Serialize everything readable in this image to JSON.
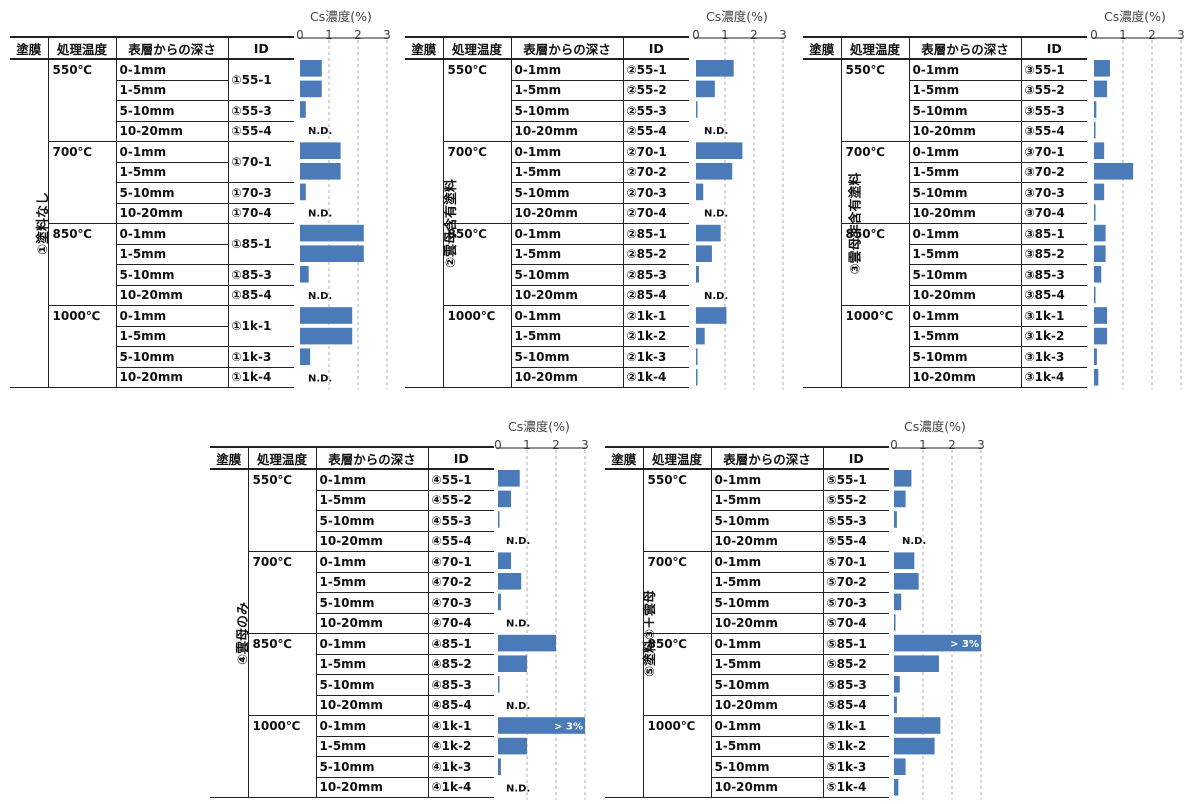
{
  "header": {
    "coat": "塗膜",
    "temp": "処理温度",
    "depth": "表層からの深さ",
    "id": "ID"
  },
  "axis": {
    "title": "Cs濃度(%)",
    "ticks": [
      "0",
      "1",
      "2",
      "3"
    ]
  },
  "nd_label": "N.D.",
  "over_label": "> 3%",
  "colors": {
    "bar": "#4a7ab8",
    "grid": "#999999",
    "rule": "#222222"
  },
  "temperatures": [
    "550℃",
    "700℃",
    "850℃",
    "1000℃"
  ],
  "depths": [
    "0-1mm",
    "1-5mm",
    "5-10mm",
    "10-20mm"
  ],
  "chart_data": [
    {
      "type": "bar",
      "coating": "①塗料なし",
      "title": "Cs濃度(%)",
      "xlim": [
        0,
        3
      ],
      "groups": [
        {
          "temp": "550℃",
          "rows": [
            {
              "depth": "0-1mm",
              "id": "①55-1",
              "value": 0.75,
              "merged": true
            },
            {
              "depth": "1-5mm",
              "id": "",
              "value": 0.75
            },
            {
              "depth": "5-10mm",
              "id": "①55-3",
              "value": 0.2
            },
            {
              "depth": "10-20mm",
              "id": "①55-4",
              "value": null,
              "label": "N.D."
            }
          ]
        },
        {
          "temp": "700℃",
          "rows": [
            {
              "depth": "0-1mm",
              "id": "①70-1",
              "value": 1.4,
              "merged": true
            },
            {
              "depth": "1-5mm",
              "id": "",
              "value": 1.4
            },
            {
              "depth": "5-10mm",
              "id": "①70-3",
              "value": 0.2
            },
            {
              "depth": "10-20mm",
              "id": "①70-4",
              "value": null,
              "label": "N.D."
            }
          ]
        },
        {
          "temp": "850℃",
          "rows": [
            {
              "depth": "0-1mm",
              "id": "①85-1",
              "value": 2.2,
              "merged": true
            },
            {
              "depth": "1-5mm",
              "id": "",
              "value": 2.2
            },
            {
              "depth": "5-10mm",
              "id": "①85-3",
              "value": 0.3
            },
            {
              "depth": "10-20mm",
              "id": "①85-4",
              "value": null,
              "label": "N.D."
            }
          ]
        },
        {
          "temp": "1000℃",
          "rows": [
            {
              "depth": "0-1mm",
              "id": "①1k-1",
              "value": 1.8,
              "merged": true
            },
            {
              "depth": "1-5mm",
              "id": "",
              "value": 1.8
            },
            {
              "depth": "5-10mm",
              "id": "①1k-3",
              "value": 0.35
            },
            {
              "depth": "10-20mm",
              "id": "①1k-4",
              "value": null,
              "label": "N.D."
            }
          ]
        }
      ]
    },
    {
      "type": "bar",
      "coating": "②雲母含有塗料",
      "title": "Cs濃度(%)",
      "xlim": [
        0,
        3
      ],
      "groups": [
        {
          "temp": "550℃",
          "rows": [
            {
              "depth": "0-1mm",
              "id": "②55-1",
              "value": 1.3
            },
            {
              "depth": "1-5mm",
              "id": "②55-2",
              "value": 0.65
            },
            {
              "depth": "5-10mm",
              "id": "②55-3",
              "value": 0.05
            },
            {
              "depth": "10-20mm",
              "id": "②55-4",
              "value": null,
              "label": "N.D."
            }
          ]
        },
        {
          "temp": "700℃",
          "rows": [
            {
              "depth": "0-1mm",
              "id": "②70-1",
              "value": 1.6
            },
            {
              "depth": "1-5mm",
              "id": "②70-2",
              "value": 1.25
            },
            {
              "depth": "5-10mm",
              "id": "②70-3",
              "value": 0.25
            },
            {
              "depth": "10-20mm",
              "id": "②70-4",
              "value": null,
              "label": "N.D."
            }
          ]
        },
        {
          "temp": "850℃",
          "rows": [
            {
              "depth": "0-1mm",
              "id": "②85-1",
              "value": 0.85
            },
            {
              "depth": "1-5mm",
              "id": "②85-2",
              "value": 0.55
            },
            {
              "depth": "5-10mm",
              "id": "②85-3",
              "value": 0.1
            },
            {
              "depth": "10-20mm",
              "id": "②85-4",
              "value": null,
              "label": "N.D."
            }
          ]
        },
        {
          "temp": "1000℃",
          "rows": [
            {
              "depth": "0-1mm",
              "id": "②1k-1",
              "value": 1.05
            },
            {
              "depth": "1-5mm",
              "id": "②1k-2",
              "value": 0.3
            },
            {
              "depth": "5-10mm",
              "id": "②1k-3",
              "value": 0.05
            },
            {
              "depth": "10-20mm",
              "id": "②1k-4",
              "value": 0.05
            }
          ]
        }
      ]
    },
    {
      "type": "bar",
      "coating": "③雲母非含有塗料",
      "title": "Cs濃度(%)",
      "xlim": [
        0,
        3
      ],
      "groups": [
        {
          "temp": "550℃",
          "rows": [
            {
              "depth": "0-1mm",
              "id": "③55-1",
              "value": 0.55
            },
            {
              "depth": "1-5mm",
              "id": "③55-2",
              "value": 0.45
            },
            {
              "depth": "5-10mm",
              "id": "③55-3",
              "value": 0.08
            },
            {
              "depth": "10-20mm",
              "id": "③55-4",
              "value": 0.05
            }
          ]
        },
        {
          "temp": "700℃",
          "rows": [
            {
              "depth": "0-1mm",
              "id": "③70-1",
              "value": 0.35
            },
            {
              "depth": "1-5mm",
              "id": "③70-2",
              "value": 1.35
            },
            {
              "depth": "5-10mm",
              "id": "③70-3",
              "value": 0.35
            },
            {
              "depth": "10-20mm",
              "id": "③70-4",
              "value": 0.05
            }
          ]
        },
        {
          "temp": "850℃",
          "rows": [
            {
              "depth": "0-1mm",
              "id": "③85-1",
              "value": 0.4
            },
            {
              "depth": "1-5mm",
              "id": "③85-2",
              "value": 0.4
            },
            {
              "depth": "5-10mm",
              "id": "③85-3",
              "value": 0.25
            },
            {
              "depth": "10-20mm",
              "id": "③85-4",
              "value": 0.05
            }
          ]
        },
        {
          "temp": "1000℃",
          "rows": [
            {
              "depth": "0-1mm",
              "id": "③1k-1",
              "value": 0.45
            },
            {
              "depth": "1-5mm",
              "id": "③1k-2",
              "value": 0.45
            },
            {
              "depth": "5-10mm",
              "id": "③1k-3",
              "value": 0.1
            },
            {
              "depth": "10-20mm",
              "id": "③1k-4",
              "value": 0.15
            }
          ]
        }
      ]
    },
    {
      "type": "bar",
      "coating": "④雲母のみ",
      "title": "Cs濃度(%)",
      "xlim": [
        0,
        3
      ],
      "groups": [
        {
          "temp": "550℃",
          "rows": [
            {
              "depth": "0-1mm",
              "id": "④55-1",
              "value": 0.75
            },
            {
              "depth": "1-5mm",
              "id": "④55-2",
              "value": 0.45
            },
            {
              "depth": "5-10mm",
              "id": "④55-3",
              "value": 0.05
            },
            {
              "depth": "10-20mm",
              "id": "④55-4",
              "value": null,
              "label": "N.D."
            }
          ]
        },
        {
          "temp": "700℃",
          "rows": [
            {
              "depth": "0-1mm",
              "id": "④70-1",
              "value": 0.45
            },
            {
              "depth": "1-5mm",
              "id": "④70-2",
              "value": 0.8
            },
            {
              "depth": "5-10mm",
              "id": "④70-3",
              "value": 0.1
            },
            {
              "depth": "10-20mm",
              "id": "④70-4",
              "value": null,
              "label": "N.D."
            }
          ]
        },
        {
          "temp": "850℃",
          "rows": [
            {
              "depth": "0-1mm",
              "id": "④85-1",
              "value": 2.0
            },
            {
              "depth": "1-5mm",
              "id": "④85-2",
              "value": 1.0
            },
            {
              "depth": "5-10mm",
              "id": "④85-3",
              "value": 0.05
            },
            {
              "depth": "10-20mm",
              "id": "④85-4",
              "value": null,
              "label": "N.D."
            }
          ]
        },
        {
          "temp": "1000℃",
          "rows": [
            {
              "depth": "0-1mm",
              "id": "④1k-1",
              "value": 3.0,
              "label": "> 3%"
            },
            {
              "depth": "1-5mm",
              "id": "④1k-2",
              "value": 1.0
            },
            {
              "depth": "5-10mm",
              "id": "④1k-3",
              "value": 0.1
            },
            {
              "depth": "10-20mm",
              "id": "④1k-4",
              "value": null,
              "label": "N.D."
            }
          ]
        }
      ]
    },
    {
      "type": "bar",
      "coating": "⑤塗料③＋雲母",
      "title": "Cs濃度(%)",
      "xlim": [
        0,
        3
      ],
      "groups": [
        {
          "temp": "550℃",
          "rows": [
            {
              "depth": "0-1mm",
              "id": "⑤55-1",
              "value": 0.6
            },
            {
              "depth": "1-5mm",
              "id": "⑤55-2",
              "value": 0.4
            },
            {
              "depth": "5-10mm",
              "id": "⑤55-3",
              "value": 0.1
            },
            {
              "depth": "10-20mm",
              "id": "⑤55-4",
              "value": null,
              "label": "N.D."
            }
          ]
        },
        {
          "temp": "700℃",
          "rows": [
            {
              "depth": "0-1mm",
              "id": "⑤70-1",
              "value": 0.7
            },
            {
              "depth": "1-5mm",
              "id": "⑤70-2",
              "value": 0.85
            },
            {
              "depth": "5-10mm",
              "id": "⑤70-3",
              "value": 0.25
            },
            {
              "depth": "10-20mm",
              "id": "⑤70-4",
              "value": 0.05
            }
          ]
        },
        {
          "temp": "850℃",
          "rows": [
            {
              "depth": "0-1mm",
              "id": "⑤85-1",
              "value": 3.0,
              "label": "> 3%"
            },
            {
              "depth": "1-5mm",
              "id": "⑤85-2",
              "value": 1.55
            },
            {
              "depth": "5-10mm",
              "id": "⑤85-3",
              "value": 0.2
            },
            {
              "depth": "10-20mm",
              "id": "⑤85-4",
              "value": 0.1
            }
          ]
        },
        {
          "temp": "1000℃",
          "rows": [
            {
              "depth": "0-1mm",
              "id": "⑤1k-1",
              "value": 1.6
            },
            {
              "depth": "1-5mm",
              "id": "⑤1k-2",
              "value": 1.4
            },
            {
              "depth": "5-10mm",
              "id": "⑤1k-3",
              "value": 0.4
            },
            {
              "depth": "10-20mm",
              "id": "⑤1k-4",
              "value": 0.15
            }
          ]
        }
      ]
    }
  ]
}
